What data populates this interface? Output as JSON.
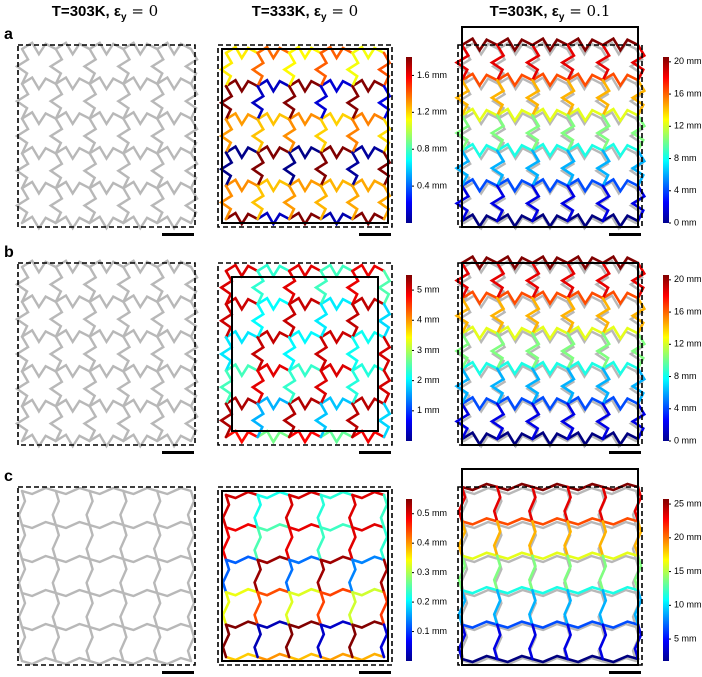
{
  "columns": [
    {
      "prefix": "T=303K, ",
      "symbol": "ε",
      "sub": "y",
      "suffix": " = 0"
    },
    {
      "prefix": "T=333K, ",
      "symbol": "ε",
      "sub": "y",
      "suffix": " = 0"
    },
    {
      "prefix": "T=303K, ",
      "symbol": "ε",
      "sub": "y",
      "suffix": " = 0.1"
    }
  ],
  "rows": [
    {
      "label": "a",
      "colorbars": [
        [
          "1.6 mm",
          "1.2 mm",
          "0.8 mm",
          "0.4 mm"
        ],
        [
          "20 mm",
          "16 mm",
          "12 mm",
          "8 mm",
          "4 mm",
          "0 mm"
        ]
      ]
    },
    {
      "label": "b",
      "colorbars": [
        [
          "5 mm",
          "4 mm",
          "3 mm",
          "2 mm",
          "1 mm"
        ],
        [
          "20 mm",
          "16 mm",
          "12 mm",
          "8 mm",
          "4 mm",
          "0 mm"
        ]
      ]
    },
    {
      "label": "c",
      "colorbars": [
        [
          "0.5 mm",
          "0.4 mm",
          "0.3 mm",
          "0.2 mm",
          "0.1 mm"
        ],
        [
          "25 mm",
          "20 mm",
          "15 mm",
          "10 mm",
          "5 mm"
        ]
      ]
    }
  ]
}
